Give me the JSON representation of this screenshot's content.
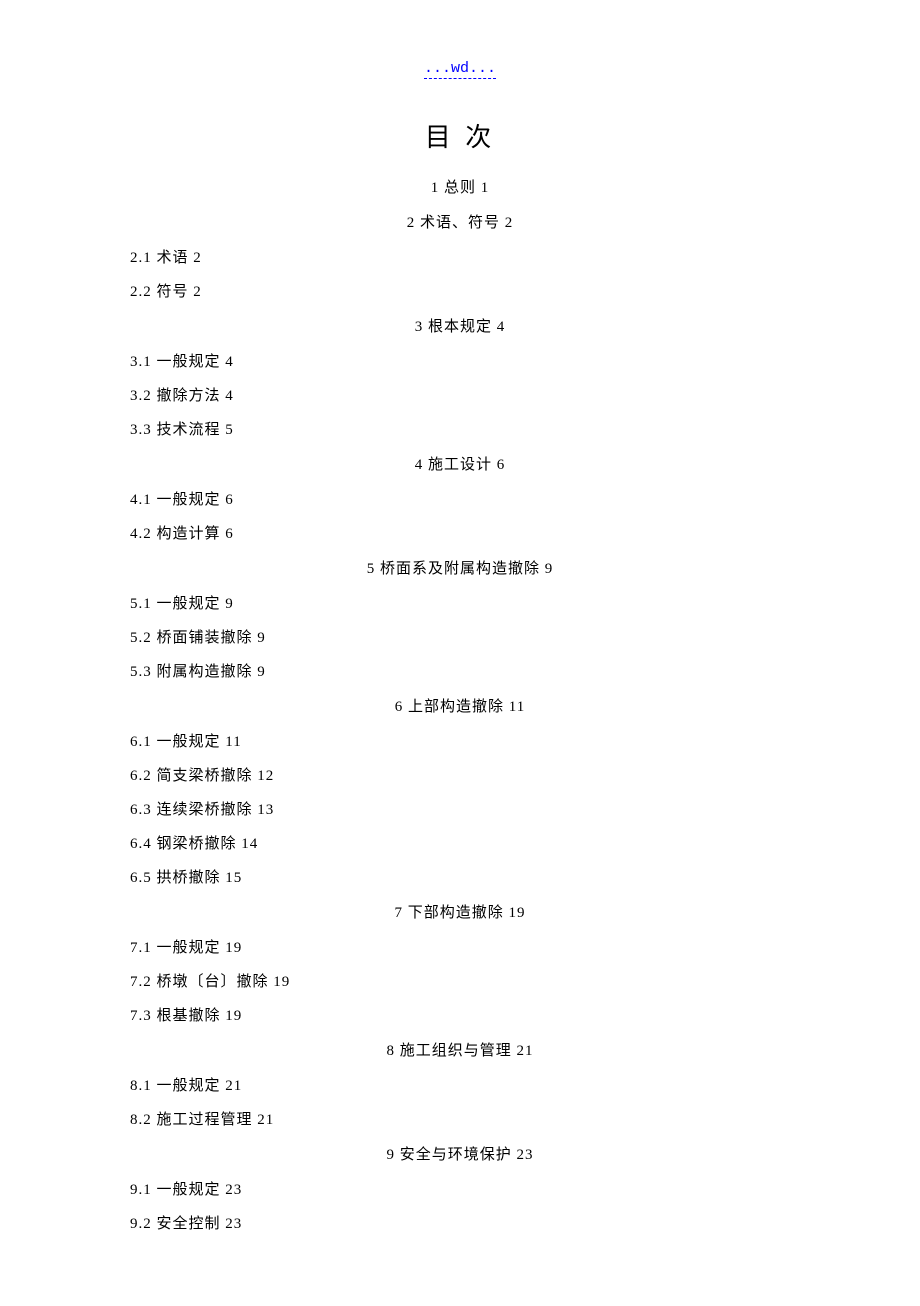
{
  "header_link": "...wd...",
  "title": "目 次",
  "chapters": [
    {
      "heading": "1 总则 1",
      "sections": []
    },
    {
      "heading": "2 术语、符号 2",
      "sections": [
        "2.1 术语 2",
        "2.2 符号 2"
      ]
    },
    {
      "heading": "3  根本规定 4",
      "sections": [
        "3.1 一般规定 4",
        "3.2 撤除方法 4",
        "3.3 技术流程 5"
      ]
    },
    {
      "heading": "4 施工设计 6",
      "sections": [
        "4.1 一般规定 6",
        "4.2 构造计算 6"
      ]
    },
    {
      "heading": "5 桥面系及附属构造撤除 9",
      "sections": [
        "5.1 一般规定 9",
        "5.2 桥面铺装撤除 9",
        "5.3 附属构造撤除 9"
      ]
    },
    {
      "heading": "6 上部构造撤除 11",
      "sections": [
        "6.1 一般规定 11",
        "6.2 简支梁桥撤除 12",
        "6.3 连续梁桥撤除 13",
        "6.4 钢梁桥撤除 14",
        "6.5 拱桥撤除 15"
      ]
    },
    {
      "heading": "7 下部构造撤除 19",
      "sections": [
        "7.1 一般规定 19",
        "7.2 桥墩〔台〕撤除 19",
        "7.3 根基撤除 19"
      ]
    },
    {
      "heading": "8 施工组织与管理 21",
      "sections": [
        "8.1 一般规定 21",
        "8.2 施工过程管理 21"
      ]
    },
    {
      "heading": "9 安全与环境保护 23",
      "sections": [
        "9.1 一般规定 23",
        "9.2 安全控制 23"
      ]
    }
  ]
}
